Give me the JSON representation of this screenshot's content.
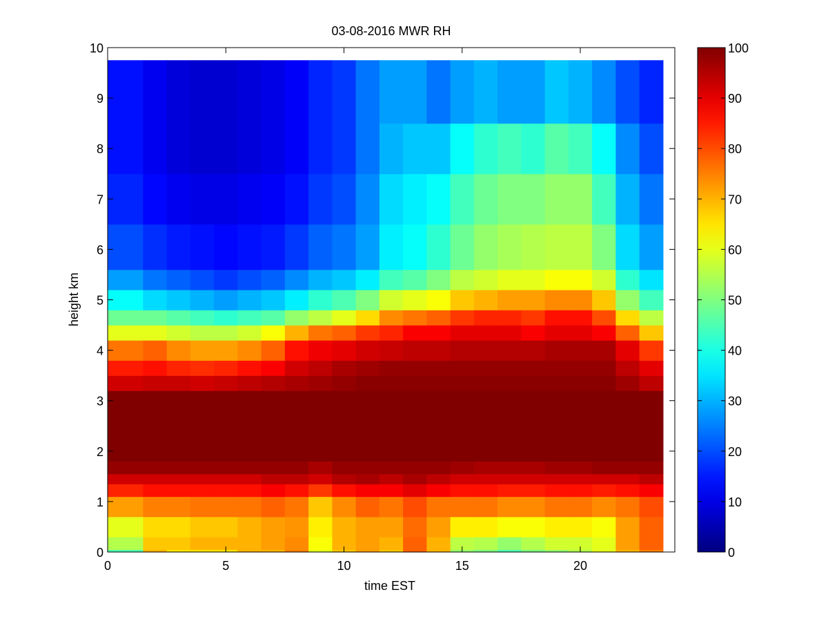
{
  "chart_data": {
    "type": "heatmap",
    "title": "03-08-2016 MWR RH",
    "xlabel": "time EST",
    "ylabel": "height km",
    "xlim": [
      0,
      24
    ],
    "ylim": [
      0,
      10
    ],
    "xticks": [
      0,
      5,
      10,
      15,
      20
    ],
    "yticks": [
      0,
      1,
      2,
      3,
      4,
      5,
      6,
      7,
      8,
      9,
      10
    ],
    "data_x_extent": [
      0,
      23.5
    ],
    "data_y_extent": [
      0,
      9.75
    ],
    "colormap": "jet",
    "colorbar": {
      "range": [
        0,
        100
      ],
      "ticks": [
        0,
        10,
        20,
        30,
        40,
        50,
        60,
        70,
        80,
        90,
        100
      ]
    },
    "times": [
      0,
      1.5,
      2.5,
      3.5,
      4.5,
      5.5,
      6.5,
      7.5,
      8.5,
      9.5,
      10.5,
      11.5,
      12.5,
      13.5,
      14.5,
      15.5,
      16.5,
      17.5,
      18.5,
      19.5,
      20.5,
      21.5,
      22.5,
      23.5
    ],
    "heights": [
      0,
      0.05,
      0.3,
      0.7,
      1.1,
      1.35,
      1.55,
      1.8,
      2.5,
      3.2,
      3.5,
      3.8,
      4.2,
      4.5,
      4.8,
      5.2,
      5.6,
      6.5,
      7.5,
      8.5,
      9.75
    ],
    "rh": [
      [
        45,
        70,
        65,
        65,
        65,
        70,
        70,
        75,
        60,
        68,
        72,
        68,
        78,
        70,
        52,
        50,
        45,
        50,
        52,
        55,
        60,
        70,
        75
      ],
      [
        55,
        68,
        68,
        70,
        70,
        70,
        72,
        74,
        62,
        70,
        72,
        70,
        78,
        70,
        56,
        55,
        52,
        55,
        58,
        58,
        60,
        72,
        78
      ],
      [
        60,
        66,
        66,
        68,
        68,
        70,
        72,
        73,
        64,
        70,
        72,
        72,
        77,
        72,
        64,
        64,
        62,
        62,
        64,
        64,
        62,
        72,
        78
      ],
      [
        72,
        75,
        75,
        76,
        76,
        76,
        78,
        76,
        68,
        74,
        78,
        76,
        80,
        76,
        76,
        76,
        74,
        74,
        76,
        76,
        74,
        76,
        80
      ],
      [
        84,
        86,
        86,
        86,
        86,
        86,
        88,
        86,
        82,
        86,
        88,
        88,
        90,
        88,
        86,
        86,
        85,
        85,
        86,
        86,
        85,
        86,
        88
      ],
      [
        92,
        92,
        92,
        92,
        92,
        92,
        94,
        94,
        92,
        95,
        96,
        94,
        96,
        94,
        92,
        92,
        92,
        92,
        92,
        92,
        92,
        92,
        94
      ],
      [
        98,
        98,
        98,
        98,
        98,
        98,
        98,
        98,
        96,
        98,
        98,
        98,
        98,
        98,
        97,
        96,
        96,
        96,
        97,
        97,
        98,
        98,
        98
      ],
      [
        100,
        100,
        100,
        100,
        100,
        100,
        100,
        100,
        100,
        100,
        100,
        100,
        100,
        100,
        100,
        100,
        100,
        100,
        100,
        100,
        100,
        100,
        100
      ],
      [
        100,
        100,
        100,
        100,
        100,
        100,
        100,
        100,
        100,
        100,
        100,
        100,
        100,
        100,
        100,
        100,
        100,
        100,
        100,
        100,
        100,
        100,
        100
      ],
      [
        92,
        93,
        93,
        92,
        93,
        94,
        95,
        96,
        97,
        98,
        99,
        99,
        99,
        99,
        99,
        99,
        99,
        99,
        99,
        99,
        99,
        97,
        94
      ],
      [
        85,
        86,
        84,
        83,
        84,
        86,
        88,
        92,
        94,
        96,
        97,
        98,
        98,
        98,
        98,
        98,
        98,
        98,
        98,
        98,
        98,
        94,
        90
      ],
      [
        76,
        78,
        74,
        72,
        72,
        74,
        78,
        86,
        89,
        90,
        92,
        93,
        94,
        94,
        95,
        95,
        95,
        95,
        96,
        96,
        96,
        90,
        82
      ],
      [
        60,
        60,
        58,
        56,
        56,
        58,
        62,
        70,
        76,
        78,
        82,
        84,
        88,
        88,
        90,
        90,
        90,
        88,
        90,
        90,
        88,
        78,
        68
      ],
      [
        48,
        48,
        46,
        44,
        42,
        44,
        46,
        52,
        56,
        60,
        66,
        74,
        76,
        78,
        82,
        84,
        84,
        82,
        86,
        86,
        80,
        66,
        56
      ],
      [
        38,
        34,
        32,
        30,
        28,
        30,
        32,
        36,
        42,
        45,
        50,
        58,
        60,
        62,
        68,
        70,
        72,
        72,
        74,
        74,
        68,
        52,
        44
      ],
      [
        28,
        24,
        22,
        20,
        18,
        20,
        22,
        26,
        30,
        32,
        36,
        44,
        46,
        50,
        56,
        58,
        60,
        60,
        62,
        62,
        58,
        42,
        35
      ],
      [
        20,
        17,
        15,
        14,
        13,
        14,
        15,
        18,
        22,
        24,
        28,
        36,
        38,
        42,
        48,
        52,
        54,
        55,
        56,
        56,
        50,
        34,
        28
      ],
      [
        16,
        13,
        11,
        10,
        10,
        11,
        12,
        14,
        18,
        20,
        26,
        34,
        36,
        38,
        44,
        48,
        50,
        50,
        52,
        52,
        44,
        30,
        24
      ],
      [
        14,
        11,
        9,
        8,
        8,
        9,
        10,
        12,
        16,
        18,
        24,
        30,
        32,
        32,
        38,
        42,
        44,
        42,
        46,
        44,
        38,
        26,
        20
      ],
      [
        14,
        11,
        9,
        8,
        8,
        9,
        10,
        12,
        16,
        18,
        24,
        28,
        28,
        24,
        28,
        30,
        28,
        28,
        32,
        30,
        26,
        20,
        16
      ]
    ]
  }
}
